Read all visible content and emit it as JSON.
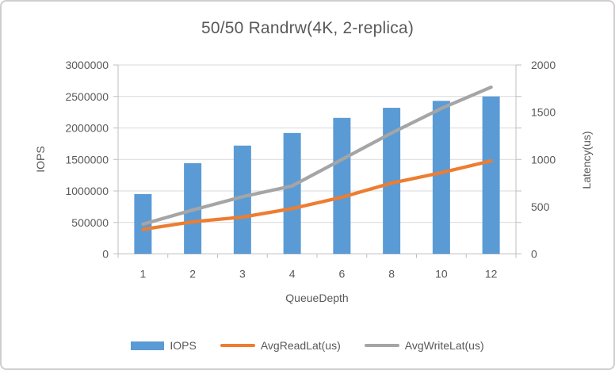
{
  "chart_data": {
    "type": "combo-bar-line",
    "title": "50/50 Randrw(4K, 2-replica)",
    "categories": [
      "1",
      "2",
      "3",
      "4",
      "6",
      "8",
      "10",
      "12"
    ],
    "xlabel": "QueueDepth",
    "left_axis": {
      "label": "IOPS",
      "min": 0,
      "max": 3000000,
      "tick_labels": [
        "0",
        "500000",
        "1000000",
        "1500000",
        "2000000",
        "2500000",
        "3000000"
      ]
    },
    "right_axis": {
      "label": "Latency(us)",
      "min": 0,
      "max": 2000,
      "tick_values": [
        0,
        500,
        1000,
        1500,
        2000
      ],
      "tick_labels": [
        "0",
        "500",
        "1000",
        "1500",
        "2000"
      ]
    },
    "series": [
      {
        "name": "IOPS",
        "type": "bar",
        "axis": "left",
        "color": "#5B9BD5",
        "values": [
          950000,
          1440000,
          1720000,
          1920000,
          2160000,
          2320000,
          2430000,
          2500000
        ]
      },
      {
        "name": "AvgReadLat(us)",
        "type": "line",
        "axis": "right",
        "color": "#ED7D31",
        "values": [
          260,
          340,
          390,
          480,
          600,
          750,
          860,
          985
        ]
      },
      {
        "name": "AvgWriteLat(us)",
        "type": "line",
        "axis": "right",
        "color": "#A5A5A5",
        "values": [
          315,
          465,
          605,
          720,
          1000,
          1280,
          1540,
          1765
        ]
      }
    ],
    "legend_position": "bottom",
    "grid": true
  },
  "style_colors": {
    "text": "#595959",
    "gridline": "#D9D9D9",
    "axis_line": "#BFBFBF",
    "frame_border": "#CFCDCD",
    "background": "#FFFFFF"
  }
}
